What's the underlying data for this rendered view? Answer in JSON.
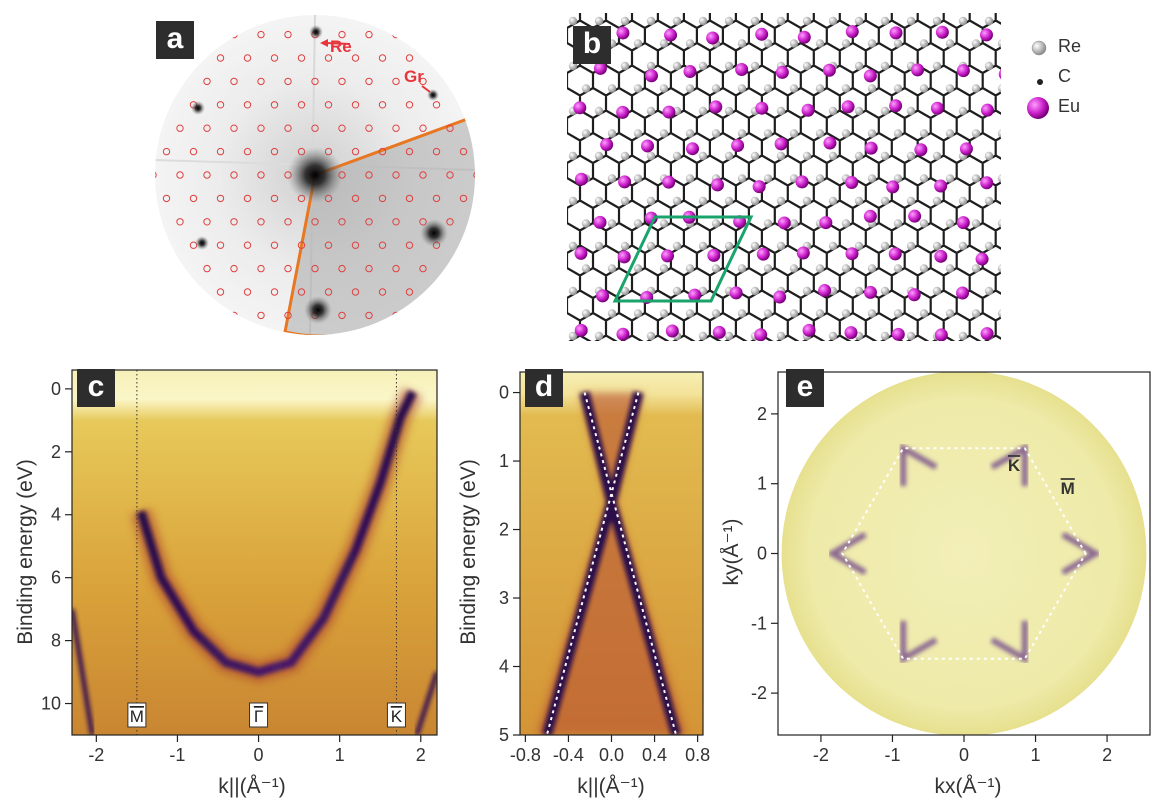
{
  "panels": {
    "a": {
      "label": "a",
      "annotations": [
        {
          "text": "Re",
          "color": "#e8353b"
        },
        {
          "text": "Gr",
          "color": "#e8353b"
        }
      ],
      "overlay_color": "#e87722"
    },
    "b": {
      "label": "b",
      "legend": [
        {
          "name": "Re",
          "symbol": "grey-sphere",
          "color": "#b5b5b5"
        },
        {
          "name": "C",
          "symbol": "small-dot",
          "color": "#222222"
        },
        {
          "name": "Eu",
          "symbol": "magenta-sphere",
          "color": "#cc22cc"
        }
      ],
      "unit_cell_color": "#1aa36b"
    },
    "c": {
      "label": "c"
    },
    "d": {
      "label": "d"
    },
    "e": {
      "label": "e"
    }
  },
  "chart_data": [
    {
      "panel": "c",
      "type": "heatmap",
      "xlabel": "k||(Å⁻¹)",
      "ylabel": "Binding energy (eV)",
      "xlim": [
        -2.3,
        2.2
      ],
      "ylim": [
        11,
        -0.6
      ],
      "x_ticks": [
        -2,
        -1,
        0,
        1,
        2
      ],
      "y_ticks": [
        0,
        2,
        4,
        6,
        8,
        10
      ],
      "high_symbol_points": [
        {
          "label": "M",
          "x": -1.5
        },
        {
          "label": "Γ",
          "x": 0
        },
        {
          "label": "K",
          "x": 1.7
        }
      ],
      "band_points": [
        {
          "k": -1.45,
          "E": 3.9
        },
        {
          "k": -1.2,
          "E": 6.0
        },
        {
          "k": -0.8,
          "E": 7.7
        },
        {
          "k": -0.4,
          "E": 8.7
        },
        {
          "k": 0,
          "E": 9.0
        },
        {
          "k": 0.4,
          "E": 8.7
        },
        {
          "k": 0.8,
          "E": 7.3
        },
        {
          "k": 1.2,
          "E": 5.1
        },
        {
          "k": 1.5,
          "E": 3.0
        },
        {
          "k": 1.75,
          "E": 0.9
        },
        {
          "k": 1.9,
          "E": 0.1
        }
      ]
    },
    {
      "panel": "d",
      "type": "heatmap",
      "xlabel": "k||(Å⁻¹)",
      "ylabel": "Binding energy (eV)",
      "xlim": [
        -0.85,
        0.85
      ],
      "ylim": [
        5,
        -0.3
      ],
      "x_ticks": [
        -0.8,
        -0.4,
        0.0,
        0.4,
        0.8
      ],
      "y_ticks": [
        0,
        1,
        2,
        3,
        4,
        5
      ],
      "dirac_point_E": 1.6,
      "dashed_lines": [
        {
          "from": [
            -0.25,
            0
          ],
          "to": [
            0.6,
            5
          ]
        },
        {
          "from": [
            0.25,
            0
          ],
          "to": [
            -0.6,
            5
          ]
        }
      ]
    },
    {
      "panel": "e",
      "type": "heatmap",
      "xlabel": "kx(Å⁻¹)",
      "ylabel": "ky(Å⁻¹)",
      "xlim": [
        -2.6,
        2.6
      ],
      "ylim": [
        -2.6,
        2.6
      ],
      "x_ticks": [
        -2,
        -1,
        0,
        1,
        2
      ],
      "y_ticks": [
        -2,
        -1,
        0,
        1,
        2
      ],
      "brillouin_zone_radius": 1.7,
      "high_symbol_points": [
        {
          "label": "K",
          "x": 0.7,
          "y": 1.18
        },
        {
          "label": "M",
          "x": 1.45,
          "y": 0.85
        }
      ]
    }
  ]
}
